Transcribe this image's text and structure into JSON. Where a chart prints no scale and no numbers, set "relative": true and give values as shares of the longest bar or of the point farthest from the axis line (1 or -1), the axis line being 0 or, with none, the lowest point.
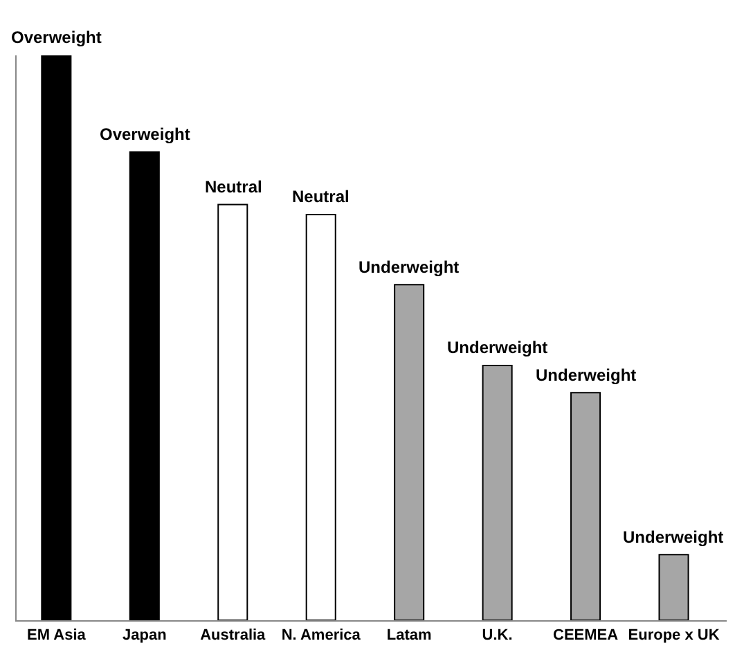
{
  "chart_data": {
    "type": "bar",
    "relative": true,
    "categories": [
      "EM Asia",
      "Japan",
      "Australia",
      "N. America",
      "Latam",
      "U.K.",
      "CEEMEA",
      "Europe x UK"
    ],
    "values": [
      1,
      0.829,
      0.736,
      0.718,
      0.594,
      0.451,
      0.403,
      0.116
    ],
    "colors": [
      "#000000",
      "#000000",
      "#ffffff",
      "#ffffff",
      "#a6a6a6",
      "#a6a6a6",
      "#a6a6a6",
      "#a6a6a6"
    ],
    "annotations": [
      {
        "text": "Overweight",
        "x": "EM Asia",
        "y": 1
      },
      {
        "text": "Overweight",
        "x": "Japan",
        "y": 0.829
      },
      {
        "text": "Neutral",
        "x": "Australia",
        "y": 0.736
      },
      {
        "text": "Neutral",
        "x": "N. America",
        "y": 0.718
      },
      {
        "text": "Underweight",
        "x": "Latam",
        "y": 0.594
      },
      {
        "text": "Underweight",
        "x": "U.K.",
        "y": 0.451
      },
      {
        "text": "Underweight",
        "x": "CEEMEA",
        "y": 0.403
      },
      {
        "text": "Underweight",
        "x": "Europe x UK",
        "y": 0.116
      }
    ],
    "legend": false
  }
}
